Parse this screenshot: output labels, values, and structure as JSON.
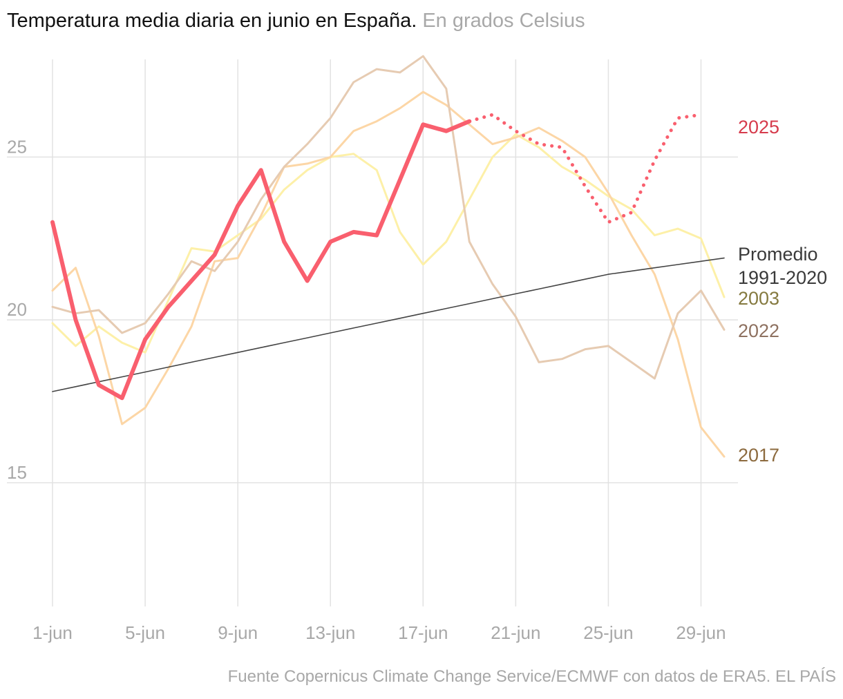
{
  "title": "Temperatura media diaria en junio en España.",
  "subtitle": "En grados Celsius",
  "source": "Fuente Copernicus Climate Change Service/ECMWF con datos de ERA5. EL PAÍS",
  "colors": {
    "grid": "#e2e2e2",
    "tick": "#a8a8a8"
  },
  "chart_data": {
    "type": "line",
    "title": "Temperatura media diaria en junio en España.",
    "subtitle": "En grados Celsius",
    "xlabel": "",
    "ylabel": "",
    "x_days": [
      1,
      2,
      3,
      4,
      5,
      6,
      7,
      8,
      9,
      10,
      11,
      12,
      13,
      14,
      15,
      16,
      17,
      18,
      19,
      20,
      21,
      22,
      23,
      24,
      25,
      26,
      27,
      28,
      29,
      30
    ],
    "x_ticks": [
      {
        "day": 1,
        "label": "1-jun"
      },
      {
        "day": 5,
        "label": "5-jun"
      },
      {
        "day": 9,
        "label": "9-jun"
      },
      {
        "day": 13,
        "label": "13-jun"
      },
      {
        "day": 17,
        "label": "17-jun"
      },
      {
        "day": 21,
        "label": "21-jun"
      },
      {
        "day": 25,
        "label": "25-jun"
      },
      {
        "day": 29,
        "label": "29-jun"
      }
    ],
    "y_ticks": [
      15,
      20,
      25
    ],
    "ylim": [
      11.2,
      28.0
    ],
    "xlim": [
      1,
      30
    ],
    "series": [
      {
        "name": "2003",
        "label": "2003",
        "color": "#fdf0a8",
        "label_color": "#857a40",
        "width": 3,
        "values": [
          19.9,
          19.2,
          19.8,
          19.3,
          19.0,
          20.6,
          22.2,
          22.1,
          22.6,
          23.1,
          24.0,
          24.6,
          25.0,
          25.1,
          24.6,
          22.7,
          21.7,
          22.4,
          23.7,
          25.0,
          25.7,
          25.3,
          24.7,
          24.3,
          23.8,
          23.4,
          22.6,
          22.8,
          22.5,
          20.7
        ]
      },
      {
        "name": "2017",
        "label": "2017",
        "color": "#fcd6a6",
        "label_color": "#8c6a3e",
        "width": 3,
        "values": [
          20.9,
          21.6,
          19.5,
          16.8,
          17.3,
          18.5,
          19.8,
          21.8,
          21.9,
          23.2,
          24.7,
          24.8,
          25.0,
          25.8,
          26.1,
          26.5,
          27.0,
          26.6,
          26.0,
          25.4,
          25.6,
          25.9,
          25.5,
          25.0,
          23.9,
          22.6,
          21.4,
          19.4,
          16.7,
          15.8
        ]
      },
      {
        "name": "2022",
        "label": "2022",
        "color": "#e6cbb2",
        "label_color": "#8e7160",
        "width": 3,
        "values": [
          20.4,
          20.2,
          20.3,
          19.6,
          19.9,
          20.8,
          21.8,
          21.5,
          22.4,
          23.7,
          24.7,
          25.4,
          26.2,
          27.3,
          27.7,
          27.6,
          28.1,
          27.1,
          22.4,
          21.1,
          20.1,
          18.7,
          18.8,
          19.1,
          19.2,
          18.7,
          18.2,
          20.2,
          20.9,
          19.7
        ]
      },
      {
        "name": "Promedio 1991-2020",
        "label_lines": [
          "Promedio",
          "1991-2020"
        ],
        "color": "#444444",
        "label_color": "#3a3a3a",
        "width": 1.6,
        "values": [
          17.8,
          17.95,
          18.1,
          18.25,
          18.4,
          18.55,
          18.7,
          18.85,
          19.0,
          19.15,
          19.3,
          19.45,
          19.6,
          19.75,
          19.9,
          20.05,
          20.2,
          20.35,
          20.5,
          20.65,
          20.8,
          20.95,
          21.1,
          21.25,
          21.4,
          21.5,
          21.6,
          21.7,
          21.8,
          21.9
        ]
      },
      {
        "name": "2025",
        "label": "2025",
        "color": "#f95f6e",
        "label_color": "#d63b4c",
        "width": 6,
        "forecast_from_day": 19,
        "values": [
          23.0,
          20.0,
          18.0,
          17.6,
          19.4,
          20.4,
          21.2,
          22.0,
          23.5,
          24.6,
          22.4,
          21.2,
          22.4,
          22.7,
          22.6,
          24.3,
          26.0,
          25.8,
          26.1,
          26.3,
          25.8,
          25.4,
          25.3,
          24.1,
          23.0,
          23.3,
          24.9,
          26.2,
          26.3,
          null
        ]
      }
    ]
  }
}
